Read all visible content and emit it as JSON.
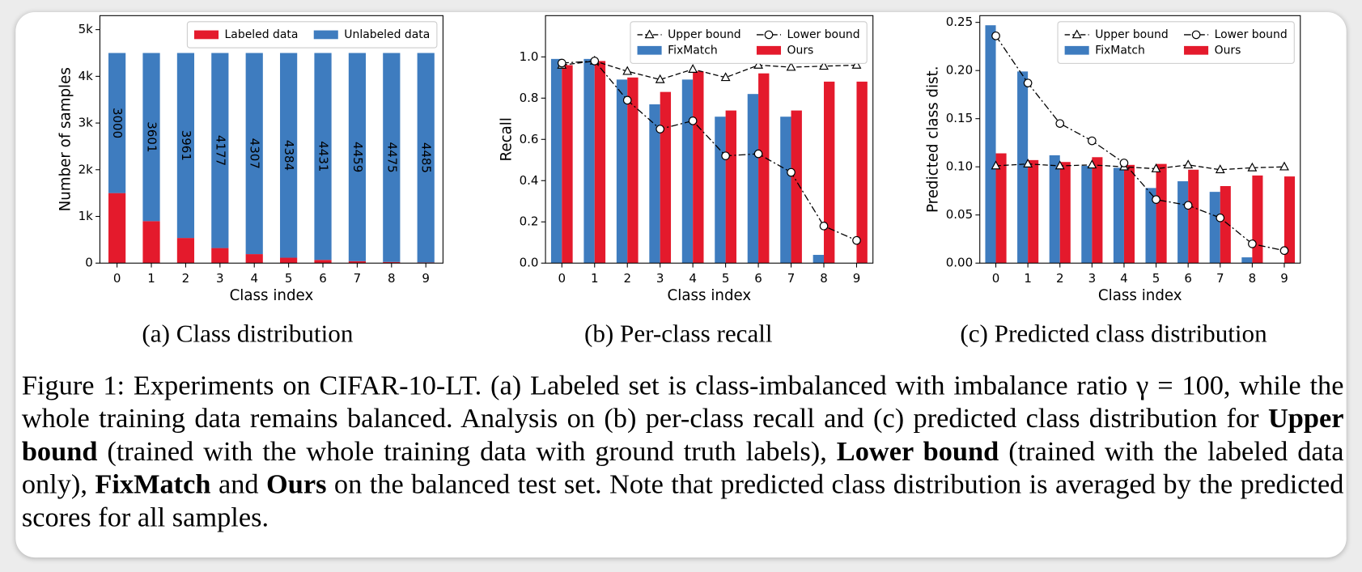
{
  "chart_data": [
    {
      "type": "stacked_bar",
      "subcaption": "(a) Class distribution",
      "xlabel": "Class index",
      "ylabel": "Number of samples",
      "categories": [
        "0",
        "1",
        "2",
        "3",
        "4",
        "5",
        "6",
        "7",
        "8",
        "9"
      ],
      "series": [
        {
          "name": "Labeled data",
          "color": "#e41a2c",
          "values": [
            1500,
            899,
            539,
            323,
            193,
            116,
            69,
            41,
            25,
            15
          ]
        },
        {
          "name": "Unlabeled data",
          "color": "#3e7cbf",
          "values": [
            3000,
            3601,
            3961,
            4177,
            4307,
            4384,
            4431,
            4459,
            4475,
            4485
          ],
          "show_values": true
        }
      ],
      "ylim": [
        0,
        5300
      ],
      "yticks": [
        0,
        {
          "value": 1000,
          "label": "1k"
        },
        {
          "value": 2000,
          "label": "2k"
        },
        {
          "value": 3000,
          "label": "3k"
        },
        {
          "value": 4000,
          "label": "4k"
        },
        {
          "value": 5000,
          "label": "5k"
        }
      ],
      "legend": "upper right"
    },
    {
      "type": "bar",
      "subcaption": "(b) Per-class recall",
      "xlabel": "Class index",
      "ylabel": "Recall",
      "categories": [
        "0",
        "1",
        "2",
        "3",
        "4",
        "5",
        "6",
        "7",
        "8",
        "9"
      ],
      "series": [
        {
          "name": "Upper bound",
          "type": "line",
          "color": "#000000",
          "linestyle": "dashed",
          "marker": "triangle",
          "values": [
            0.96,
            0.98,
            0.93,
            0.89,
            0.94,
            0.9,
            0.96,
            0.95,
            0.955,
            0.96
          ]
        },
        {
          "name": "Lower bound",
          "type": "line",
          "color": "#000000",
          "linestyle": "dashdot",
          "marker": "circle",
          "values": [
            0.97,
            0.98,
            0.79,
            0.65,
            0.69,
            0.52,
            0.53,
            0.44,
            0.18,
            0.11
          ]
        },
        {
          "name": "FixMatch",
          "color": "#3e7cbf",
          "values": [
            0.99,
            0.99,
            0.89,
            0.77,
            0.89,
            0.71,
            0.82,
            0.71,
            0.04,
            0.0
          ]
        },
        {
          "name": "Ours",
          "color": "#e41a2c",
          "values": [
            0.96,
            0.98,
            0.9,
            0.83,
            0.93,
            0.74,
            0.92,
            0.74,
            0.88,
            0.88
          ]
        }
      ],
      "ylim": [
        0,
        1.2
      ],
      "yticks": [
        {
          "value": 0,
          "label": "0.0"
        },
        0.2,
        0.4,
        0.6,
        0.8,
        {
          "value": 1,
          "label": "1.0"
        }
      ],
      "legend": "upper right"
    },
    {
      "type": "bar",
      "subcaption": "(c) Predicted class distribution",
      "xlabel": "Class index",
      "ylabel": "Predicted class dist.",
      "categories": [
        "0",
        "1",
        "2",
        "3",
        "4",
        "5",
        "6",
        "7",
        "8",
        "9"
      ],
      "series": [
        {
          "name": "Upper bound",
          "type": "line",
          "color": "#000000",
          "linestyle": "dashed",
          "marker": "triangle",
          "values": [
            0.101,
            0.103,
            0.101,
            0.102,
            0.1,
            0.098,
            0.102,
            0.097,
            0.099,
            0.1
          ]
        },
        {
          "name": "Lower bound",
          "type": "line",
          "color": "#000000",
          "linestyle": "dashdot",
          "marker": "circle",
          "values": [
            0.236,
            0.187,
            0.145,
            0.127,
            0.104,
            0.066,
            0.06,
            0.047,
            0.02,
            0.013
          ]
        },
        {
          "name": "FixMatch",
          "color": "#3e7cbf",
          "values": [
            0.247,
            0.199,
            0.112,
            0.101,
            0.099,
            0.078,
            0.085,
            0.074,
            0.006,
            0.0
          ]
        },
        {
          "name": "Ours",
          "color": "#e41a2c",
          "values": [
            0.114,
            0.107,
            0.105,
            0.11,
            0.102,
            0.103,
            0.097,
            0.08,
            0.091,
            0.09
          ]
        }
      ],
      "ylim": [
        0,
        0.257
      ],
      "yticks": [
        {
          "value": 0,
          "label": "0.00"
        },
        0.05,
        {
          "value": 0.1,
          "label": "0.10"
        },
        0.15,
        {
          "value": 0.2,
          "label": "0.20"
        },
        0.25
      ],
      "legend": "upper right"
    }
  ],
  "caption": [
    {
      "text": "Figure 1: Experiments on CIFAR-10-LT. (a) Labeled set is class-imbalanced with imbalance ratio γ = 100, while the whole training data remains balanced. Analysis on (b) per-class recall and (c) predicted class distribution for ",
      "bold": false
    },
    {
      "text": "Upper bound",
      "bold": true
    },
    {
      "text": " (trained with the whole training data with ground truth labels), ",
      "bold": false
    },
    {
      "text": "Lower bound",
      "bold": true
    },
    {
      "text": " (trained with the labeled data only), ",
      "bold": false
    },
    {
      "text": "FixMatch",
      "bold": true
    },
    {
      "text": " and ",
      "bold": false
    },
    {
      "text": "Ours",
      "bold": true
    },
    {
      "text": " on the balanced test set. Note that predicted class distribution is averaged by the predicted scores for all samples.",
      "bold": false
    }
  ]
}
